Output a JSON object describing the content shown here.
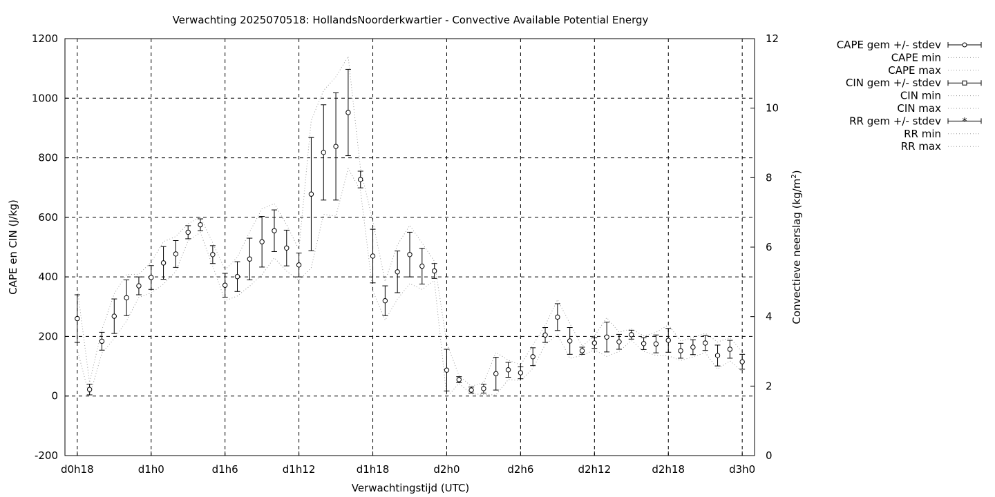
{
  "chart_data": {
    "type": "line",
    "title": "Verwachting 2025070518: HollandsNoorderkwartier - Convective Available Potential Energy",
    "xlabel": "Verwachtingstijd (UTC)",
    "ylabel": "CAPE en CIN (J/kg)",
    "y2label_main": "Convectieve neerslag (kg/m",
    "y2label_sup": "2",
    "y2label_end": ")",
    "xlim": [
      17,
      73
    ],
    "ylim": [
      -200,
      1200
    ],
    "y2lim": [
      0,
      12
    ],
    "x_ticks": [
      {
        "x": 18,
        "label": "d0h18"
      },
      {
        "x": 24,
        "label": "d1h0"
      },
      {
        "x": 30,
        "label": "d1h6"
      },
      {
        "x": 36,
        "label": "d1h12"
      },
      {
        "x": 42,
        "label": "d1h18"
      },
      {
        "x": 48,
        "label": "d2h0"
      },
      {
        "x": 54,
        "label": "d2h6"
      },
      {
        "x": 60,
        "label": "d2h12"
      },
      {
        "x": 66,
        "label": "d2h18"
      },
      {
        "x": 72,
        "label": "d3h0"
      }
    ],
    "y_ticks": [
      "-200",
      "0",
      "200",
      "400",
      "600",
      "800",
      "1000",
      "1200"
    ],
    "y_tick_values": [
      -200,
      0,
      200,
      400,
      600,
      800,
      1000,
      1200
    ],
    "y2_ticks": [
      "0",
      "2",
      "4",
      "6",
      "8",
      "10",
      "12"
    ],
    "y2_tick_values": [
      0,
      2,
      4,
      6,
      8,
      10,
      12
    ],
    "grid": true,
    "legend_position": "outside-right",
    "legend": [
      "CAPE gem +/- stdev",
      "CAPE min",
      "CAPE max",
      "CIN gem +/- stdev",
      "CIN min",
      "CIN max",
      "RR gem +/- stdev",
      "RR min",
      "RR max"
    ],
    "x": [
      18,
      19,
      20,
      21,
      22,
      23,
      24,
      25,
      26,
      27,
      28,
      29,
      30,
      31,
      32,
      33,
      34,
      35,
      36,
      37,
      38,
      39,
      40,
      41,
      42,
      43,
      44,
      45,
      46,
      47,
      48,
      49,
      50,
      51,
      52,
      53,
      54,
      55,
      56,
      57,
      58,
      59,
      60,
      61,
      62,
      63,
      64,
      65,
      66,
      67,
      68,
      69,
      70,
      71,
      72
    ],
    "cape_mean": [
      260,
      22,
      184,
      268,
      330,
      370,
      398,
      447,
      477,
      550,
      575,
      475,
      372,
      401,
      460,
      518,
      555,
      497,
      440,
      678,
      818,
      838,
      952,
      727,
      470,
      320,
      417,
      475,
      436,
      420,
      87,
      55,
      20,
      25,
      75,
      88,
      78,
      132,
      205,
      265,
      185,
      152,
      178,
      198,
      182,
      206,
      176,
      175,
      187,
      152,
      164,
      178,
      136,
      157,
      115
    ],
    "cape_sd": [
      80,
      18,
      30,
      58,
      60,
      30,
      40,
      55,
      45,
      22,
      20,
      30,
      40,
      50,
      70,
      85,
      70,
      60,
      40,
      190,
      160,
      180,
      145,
      28,
      90,
      50,
      70,
      75,
      60,
      25,
      70,
      10,
      10,
      15,
      55,
      25,
      20,
      30,
      25,
      45,
      45,
      12,
      18,
      50,
      25,
      15,
      20,
      30,
      40,
      25,
      25,
      25,
      35,
      30,
      25
    ]
  }
}
